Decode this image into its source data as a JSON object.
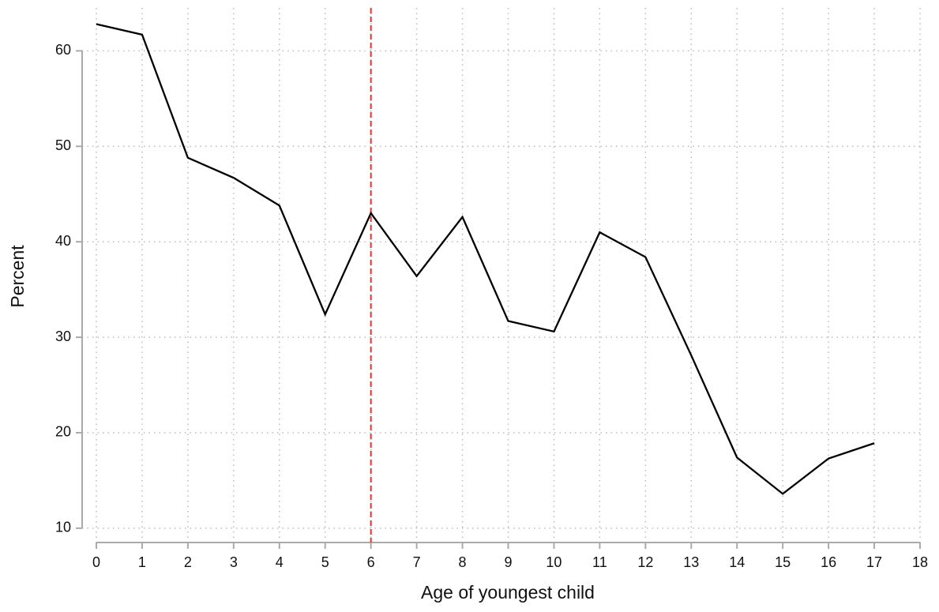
{
  "chart_data": {
    "type": "line",
    "x_label": "Age of youngest child",
    "y_label": "Percent",
    "x": [
      0,
      1,
      2,
      3,
      4,
      5,
      6,
      7,
      8,
      9,
      10,
      11,
      12,
      13,
      14,
      15,
      16,
      17
    ],
    "series": [
      {
        "color": "#000000",
        "values": [
          62.8,
          61.7,
          48.8,
          46.7,
          43.8,
          32.4,
          43.0,
          36.4,
          42.6,
          31.7,
          30.6,
          41.0,
          38.4,
          28.1,
          17.4,
          13.6,
          17.3,
          18.9
        ]
      }
    ],
    "xlim": [
      0,
      18
    ],
    "xticks": [
      0,
      1,
      2,
      3,
      4,
      5,
      6,
      7,
      8,
      9,
      10,
      11,
      12,
      13,
      14,
      15,
      16,
      17,
      18
    ],
    "ylim": [
      8.5,
      64.5
    ],
    "yticks": [
      10,
      20,
      30,
      40,
      50,
      60
    ],
    "grid": true,
    "reference_line": {
      "x": 6,
      "color": "#e8332a",
      "style": "dashed"
    }
  }
}
